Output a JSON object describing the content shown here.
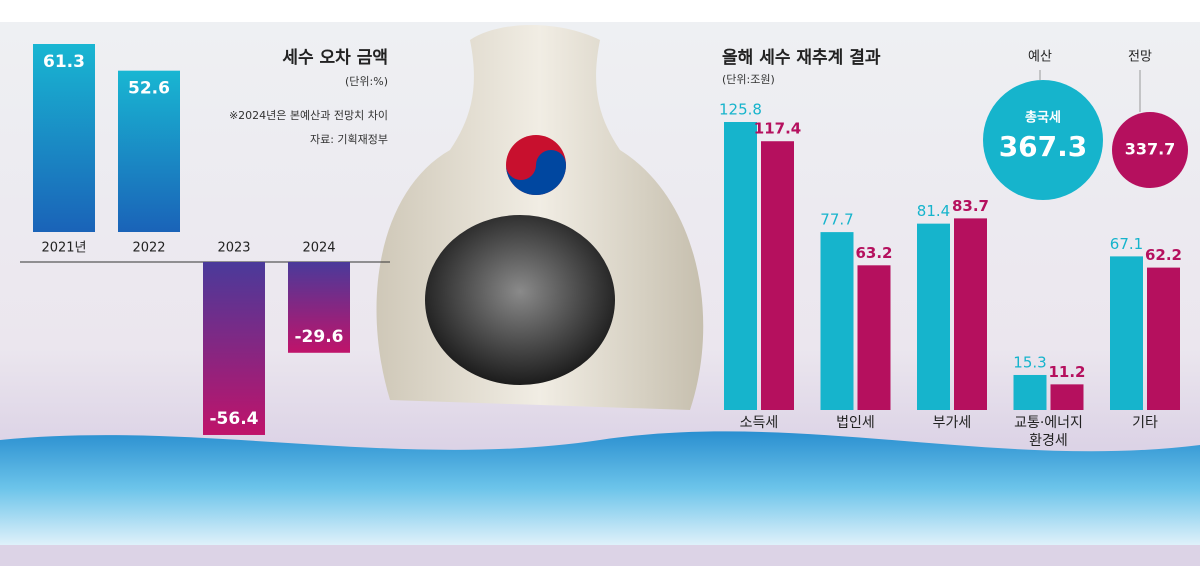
{
  "chart_data": [
    {
      "type": "bar",
      "title": "세수 오차 금액",
      "subtitle": "(단위:%)",
      "notes": [
        "※2024년은 본예산과 전망치 차이",
        "자료: 기획재정부"
      ],
      "categories": [
        "2021년",
        "2022",
        "2023",
        "2024"
      ],
      "values": [
        61.3,
        52.6,
        -56.4,
        -29.6
      ],
      "colors": {
        "positive": [
          "#19b6d2",
          "#1a63b8"
        ],
        "negative": [
          "#4a3a9a",
          "#c0136a"
        ]
      }
    },
    {
      "type": "grouped-bar",
      "title": "올해 세수 재추계 결과",
      "subtitle": "(단위:조원)",
      "categories": [
        "소득세",
        "법인세",
        "부가세",
        "교통·에너지 환경세",
        "기타"
      ],
      "series": [
        {
          "name": "예산",
          "color": "#16b4cc",
          "values": [
            125.8,
            77.7,
            81.4,
            15.3,
            67.1
          ],
          "total": 367.3
        },
        {
          "name": "전망",
          "color": "#b5105e",
          "values": [
            117.4,
            63.2,
            83.7,
            11.2,
            62.2
          ],
          "total": 337.7
        }
      ],
      "total_label": "총국세"
    }
  ]
}
